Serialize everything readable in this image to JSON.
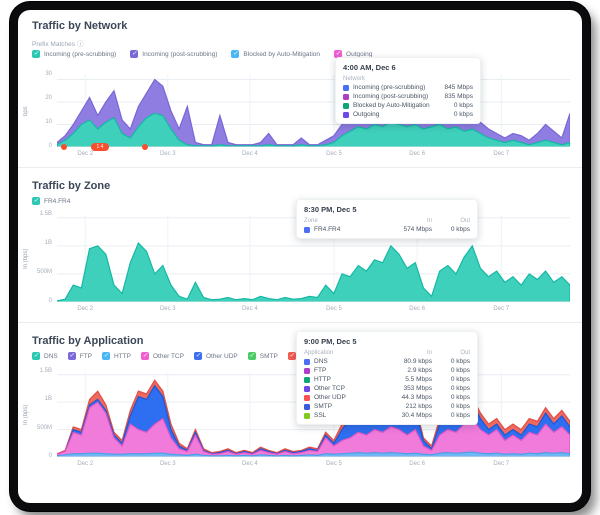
{
  "xlabels": [
    "Dec 2",
    "Dec 3",
    "Dec 4",
    "Dec 5",
    "Dec 6",
    "Dec 7"
  ],
  "network": {
    "title": "Traffic by Network",
    "subtitle": "Prefix Matches",
    "info_glyph": "ⓘ",
    "legend": [
      {
        "label": "Incoming (pre-scrubbing)",
        "color": "#2cc8b4"
      },
      {
        "label": "Incoming (post-scrubbing)",
        "color": "#7a6ad8"
      },
      {
        "label": "Blocked by Auto-Mitigation",
        "color": "#49b6f5"
      },
      {
        "label": "Outgoing",
        "color": "#ef5fd2"
      }
    ],
    "ylabel": "bps",
    "yticks": [
      "30",
      "20",
      "10",
      "0"
    ],
    "annotations": {
      "pill_label": "1 4"
    },
    "tooltip": {
      "time": "4:00 AM, Dec 6",
      "col_header": "Network",
      "rows": [
        {
          "label": "Incoming (pre-scrubbing)",
          "value": "845 Mbps",
          "color": "#4c6ef5"
        },
        {
          "label": "Incoming (post-scrubbing)",
          "value": "835 Mbps",
          "color": "#ae3ec9"
        },
        {
          "label": "Blocked by Auto-Mitigation",
          "value": "0 kbps",
          "color": "#0ca678"
        },
        {
          "label": "Outgoing",
          "value": "0 kbps",
          "color": "#7048e8"
        }
      ]
    }
  },
  "zone": {
    "title": "Traffic by Zone",
    "legend": [
      {
        "label": "FR4.FR4",
        "color": "#2cc8b4"
      }
    ],
    "ylabel": "In (bps)",
    "yticks": [
      "1.5B",
      "1B",
      "500M",
      "0"
    ],
    "tooltip": {
      "time": "8:30 PM, Dec 5",
      "col_header": "Zone",
      "col_in": "In",
      "col_out": "Out",
      "rows": [
        {
          "label": "FR4.FR4",
          "in": "574 Mbps",
          "out": "0 kbps",
          "color": "#4c6ef5"
        }
      ]
    }
  },
  "application": {
    "title": "Traffic by Application",
    "legend": [
      {
        "label": "DNS",
        "color": "#2cc8b4"
      },
      {
        "label": "FTP",
        "color": "#7a6ad8"
      },
      {
        "label": "HTTP",
        "color": "#49b6f5"
      },
      {
        "label": "Other TCP",
        "color": "#ef5fd2"
      },
      {
        "label": "Other UDP",
        "color": "#3f6ff0"
      },
      {
        "label": "SMTP",
        "color": "#4ecb66"
      },
      {
        "label": "SSL",
        "color": "#f25a50"
      }
    ],
    "ylabel": "In (bps)",
    "yticks": [
      "1.5B",
      "1B",
      "500M",
      "0"
    ],
    "tooltip": {
      "time": "9:00 PM, Dec 5",
      "col_header": "Application",
      "col_in": "In",
      "col_out": "Out",
      "rows": [
        {
          "label": "DNS",
          "in": "80.9 kbps",
          "out": "0 kbps",
          "color": "#4c6ef5"
        },
        {
          "label": "FTP",
          "in": "2.9 kbps",
          "out": "0 kbps",
          "color": "#ae3ec9"
        },
        {
          "label": "HTTP",
          "in": "5.5 Mbps",
          "out": "0 kbps",
          "color": "#0ca678"
        },
        {
          "label": "Other TCP",
          "in": "353 Mbps",
          "out": "0 kbps",
          "color": "#7048e8"
        },
        {
          "label": "Other UDP",
          "in": "44.3 Mbps",
          "out": "0 kbps",
          "color": "#fa5252"
        },
        {
          "label": "SMTP",
          "in": "212 kbps",
          "out": "0 kbps",
          "color": "#3b5bdb"
        },
        {
          "label": "SSL",
          "in": "30.4 Mbps",
          "out": "0 kbps",
          "color": "#82c91e"
        }
      ]
    }
  },
  "chart_data": [
    {
      "type": "area",
      "title": "Traffic by Network",
      "ylabel": "bps",
      "ylim": [
        0,
        32
      ],
      "x_categories": [
        "Dec 2",
        "Dec 3",
        "Dec 4",
        "Dec 5",
        "Dec 6",
        "Dec 7"
      ],
      "grid_y": [
        10,
        20,
        30
      ],
      "grid_x": [
        0.055,
        0.216,
        0.376,
        0.54,
        0.702,
        0.866
      ],
      "legend_position": "top",
      "series": [
        {
          "name": "Incoming (post-scrubbing) stacked total",
          "color": "#8f7de2",
          "line": "#7a66d6",
          "values": [
            2,
            5,
            10,
            16,
            22,
            14,
            20,
            25,
            12,
            8,
            18,
            24,
            30,
            27,
            16,
            8,
            18,
            2,
            1,
            1,
            14,
            2,
            1,
            1,
            1,
            2,
            6,
            1,
            1,
            1,
            4,
            1,
            1,
            3,
            5,
            10,
            13,
            16,
            14,
            18,
            16,
            21,
            19,
            17,
            20,
            15,
            17,
            20,
            15,
            17,
            13,
            15,
            11,
            8,
            6,
            4,
            6,
            5,
            3,
            6,
            10,
            7,
            4,
            15
          ]
        },
        {
          "name": "Incoming (pre-scrubbing)",
          "color": "#3fd0bc",
          "line": "#14b8a4",
          "values": [
            1,
            3,
            6,
            10,
            12,
            8,
            11,
            13,
            6,
            4,
            9,
            13,
            15,
            14,
            8,
            3,
            1,
            0.5,
            0.5,
            0.5,
            1,
            0.5,
            0.5,
            0.5,
            0.5,
            0.5,
            1,
            0.5,
            0.5,
            0.5,
            1,
            0.5,
            0.5,
            1,
            2,
            5,
            7,
            9,
            8,
            10,
            9,
            11,
            10,
            9,
            10,
            8,
            9,
            10,
            8,
            9,
            7,
            8,
            6,
            4,
            3,
            2,
            3,
            2,
            1,
            2,
            3,
            2,
            1,
            2
          ]
        }
      ]
    },
    {
      "type": "area",
      "title": "Traffic by Zone",
      "ylabel": "In (bps)",
      "ylim": [
        0,
        1.55
      ],
      "x_categories": [
        "Dec 2",
        "Dec 3",
        "Dec 4",
        "Dec 5",
        "Dec 6",
        "Dec 7"
      ],
      "grid_y": [
        0.5,
        1.0,
        1.5
      ],
      "grid_x": [
        0.055,
        0.216,
        0.376,
        0.54,
        0.702,
        0.866
      ],
      "legend_position": "top",
      "series": [
        {
          "name": "FR4.FR4 In (B bps)",
          "color": "#3fd0bc",
          "line": "#14b8a4",
          "values": [
            0.02,
            0.05,
            0.3,
            0.25,
            0.95,
            1.0,
            0.85,
            0.3,
            0.15,
            0.7,
            1.05,
            0.9,
            0.5,
            0.65,
            0.3,
            0.1,
            0.05,
            0.35,
            0.08,
            0.04,
            0.05,
            0.08,
            0.04,
            0.06,
            0.04,
            0.1,
            0.06,
            0.04,
            0.08,
            0.05,
            0.06,
            0.1,
            0.08,
            0.3,
            0.15,
            0.5,
            0.45,
            0.65,
            0.55,
            0.75,
            0.7,
            1.0,
            0.85,
            0.6,
            0.7,
            0.25,
            0.1,
            0.55,
            0.65,
            0.5,
            0.8,
            1.0,
            0.6,
            0.45,
            0.55,
            0.35,
            0.45,
            0.3,
            0.5,
            0.4,
            0.55,
            0.35,
            0.45,
            0.3
          ]
        }
      ]
    },
    {
      "type": "area",
      "title": "Traffic by Application",
      "ylabel": "In (bps)",
      "ylim": [
        0,
        1.55
      ],
      "x_categories": [
        "Dec 2",
        "Dec 3",
        "Dec 4",
        "Dec 5",
        "Dec 6",
        "Dec 7"
      ],
      "grid_y": [
        0.5,
        1.0,
        1.5
      ],
      "grid_x": [
        0.055,
        0.216,
        0.376,
        0.54,
        0.702,
        0.866
      ],
      "legend_position": "top",
      "series": [
        {
          "name": "SSL stacked total",
          "color": "#f0695e",
          "line": "#e04e44",
          "values": [
            0.06,
            0.12,
            0.55,
            0.5,
            1.05,
            1.2,
            0.95,
            0.45,
            0.3,
            0.85,
            1.2,
            1.15,
            1.4,
            1.2,
            0.6,
            0.25,
            0.15,
            0.5,
            0.15,
            0.08,
            0.1,
            0.15,
            0.08,
            0.12,
            0.08,
            0.18,
            0.12,
            0.08,
            0.15,
            0.1,
            0.12,
            0.18,
            0.15,
            0.45,
            0.3,
            0.6,
            0.8,
            1.0,
            0.85,
            1.05,
            0.95,
            1.1,
            1.0,
            0.8,
            0.95,
            0.35,
            0.2,
            0.7,
            0.85,
            0.7,
            1.0,
            1.1,
            0.8,
            0.6,
            0.7,
            0.5,
            0.6,
            0.5,
            0.7,
            0.65,
            0.9,
            0.7,
            0.85,
            0.65
          ]
        },
        {
          "name": "Other UDP stacked",
          "color": "#2e6ef0",
          "line": "#1d57d6",
          "values": [
            0.05,
            0.1,
            0.5,
            0.45,
            0.95,
            1.05,
            0.85,
            0.4,
            0.25,
            0.75,
            1.1,
            1.05,
            1.3,
            1.1,
            0.5,
            0.2,
            0.12,
            0.45,
            0.12,
            0.06,
            0.08,
            0.12,
            0.06,
            0.1,
            0.06,
            0.15,
            0.1,
            0.06,
            0.12,
            0.08,
            0.1,
            0.15,
            0.12,
            0.4,
            0.25,
            0.5,
            0.7,
            0.9,
            0.75,
            0.95,
            0.85,
            1.0,
            0.9,
            0.7,
            0.85,
            0.3,
            0.15,
            0.6,
            0.75,
            0.6,
            0.9,
            1.0,
            0.7,
            0.5,
            0.6,
            0.4,
            0.5,
            0.4,
            0.6,
            0.55,
            0.8,
            0.6,
            0.75,
            0.55
          ]
        },
        {
          "name": "Other TCP stacked",
          "color": "#f07bdb",
          "line": "#e256c4",
          "values": [
            0.05,
            0.1,
            0.45,
            0.4,
            0.9,
            1.0,
            0.8,
            0.35,
            0.2,
            0.6,
            0.5,
            0.45,
            0.6,
            0.7,
            0.35,
            0.15,
            0.1,
            0.4,
            0.1,
            0.05,
            0.06,
            0.1,
            0.05,
            0.08,
            0.05,
            0.12,
            0.08,
            0.05,
            0.1,
            0.06,
            0.08,
            0.12,
            0.1,
            0.35,
            0.2,
            0.3,
            0.35,
            0.45,
            0.4,
            0.5,
            0.45,
            0.55,
            0.5,
            0.4,
            0.5,
            0.2,
            0.12,
            0.4,
            0.5,
            0.45,
            0.6,
            0.7,
            0.5,
            0.4,
            0.5,
            0.3,
            0.4,
            0.3,
            0.45,
            0.4,
            0.6,
            0.45,
            0.55,
            0.4
          ]
        },
        {
          "name": "HTTP base",
          "color": "#70b6f2",
          "line": "#4d9de8",
          "values": [
            0.02,
            0.04,
            0.06,
            0.06,
            0.07,
            0.07,
            0.06,
            0.05,
            0.05,
            0.06,
            0.06,
            0.06,
            0.07,
            0.07,
            0.05,
            0.04,
            0.03,
            0.05,
            0.03,
            0.02,
            0.02,
            0.03,
            0.02,
            0.03,
            0.02,
            0.04,
            0.03,
            0.02,
            0.03,
            0.02,
            0.03,
            0.04,
            0.03,
            0.06,
            0.05,
            0.06,
            0.07,
            0.08,
            0.07,
            0.08,
            0.07,
            0.08,
            0.07,
            0.06,
            0.07,
            0.05,
            0.04,
            0.07,
            0.08,
            0.07,
            0.08,
            0.09,
            0.07,
            0.06,
            0.07,
            0.05,
            0.06,
            0.05,
            0.07,
            0.06,
            0.08,
            0.07,
            0.08,
            0.06
          ]
        }
      ]
    }
  ]
}
